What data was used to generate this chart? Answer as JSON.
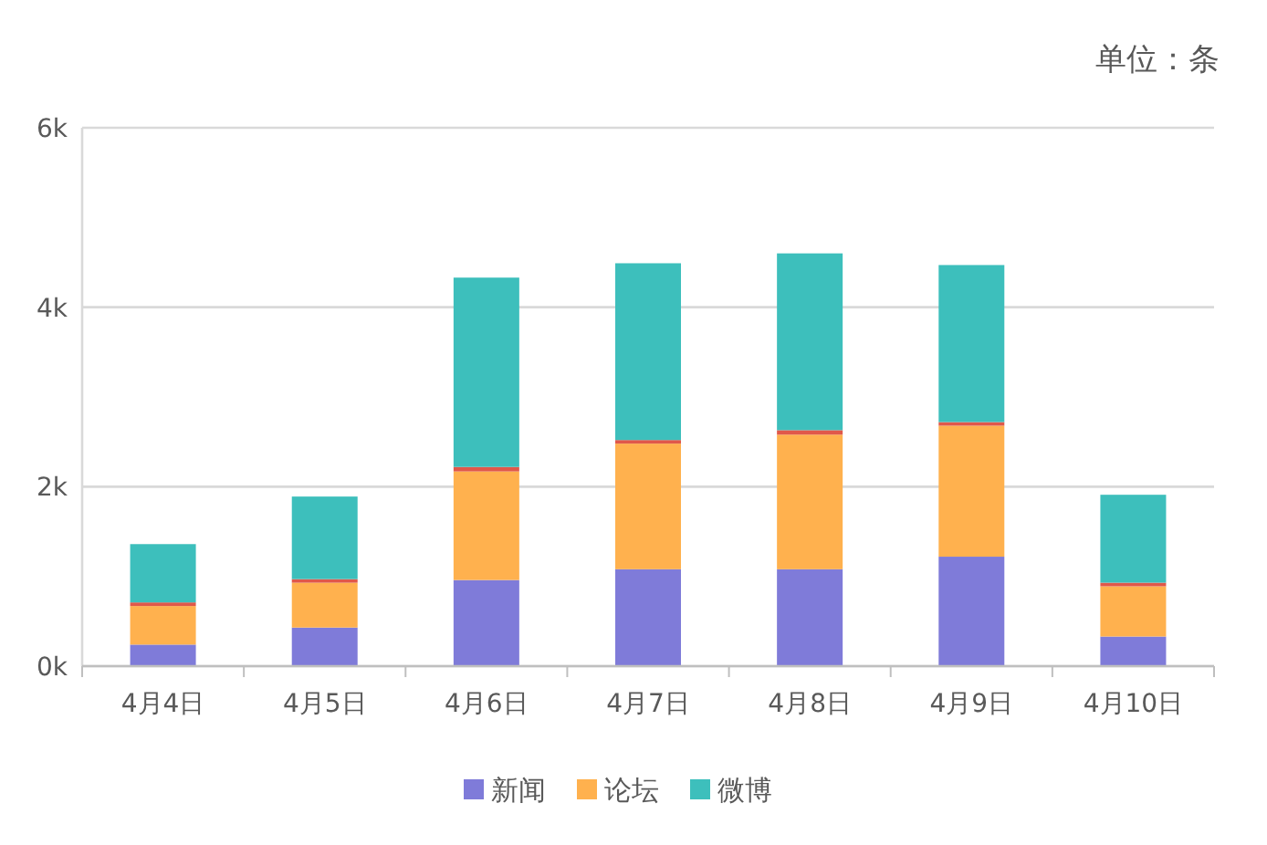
{
  "chart_data": {
    "type": "bar",
    "stacked": true,
    "categories": [
      "4月4日",
      "4月5日",
      "4月6日",
      "4月7日",
      "4月8日",
      "4月9日",
      "4月10日"
    ],
    "series": [
      {
        "name": "新闻",
        "color": "#7f7bd9",
        "values": [
          0.24,
          0.43,
          0.96,
          1.08,
          1.08,
          1.22,
          0.33
        ]
      },
      {
        "name": "论坛",
        "color": "#ffb14e",
        "values": [
          0.43,
          0.5,
          1.21,
          1.4,
          1.5,
          1.46,
          0.56
        ]
      },
      {
        "color": "#e0584a",
        "values": [
          0.04,
          0.04,
          0.05,
          0.04,
          0.05,
          0.04,
          0.04
        ]
      },
      {
        "name": "微博",
        "color": "#3dbfbc",
        "values": [
          0.65,
          0.92,
          2.11,
          1.97,
          1.97,
          1.75,
          0.98
        ]
      }
    ],
    "ylim": [
      0,
      6
    ],
    "yticks": [
      {
        "value": 0,
        "label": "0k"
      },
      {
        "value": 2,
        "label": "2k"
      },
      {
        "value": 4,
        "label": "4k"
      },
      {
        "value": 6,
        "label": "6k"
      }
    ],
    "grid": "y",
    "legend": "bottom",
    "annotations": [
      "单位：条"
    ]
  }
}
